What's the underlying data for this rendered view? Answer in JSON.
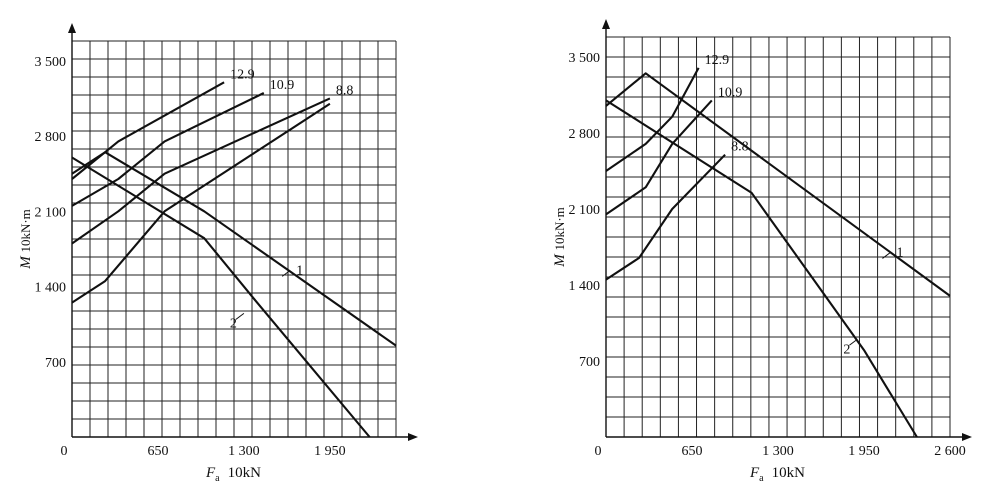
{
  "chart_data": [
    {
      "type": "line",
      "xlabel_symbol": "F",
      "xlabel_sub": "a",
      "xlabel_unit": "10kN",
      "ylabel_symbol": "M",
      "ylabel_unit": "10kN·m",
      "xlim": [
        0,
        2450
      ],
      "ylim": [
        0,
        3500
      ],
      "x_ticks": [
        {
          "value": 0,
          "label": "0"
        },
        {
          "value": 650,
          "label": "650"
        },
        {
          "value": 1300,
          "label": "1 300"
        },
        {
          "value": 1950,
          "label": "1 950"
        }
      ],
      "y_ticks": [
        {
          "value": 700,
          "label": "700"
        },
        {
          "value": 1400,
          "label": "1 400"
        },
        {
          "value": 2100,
          "label": "2 100"
        },
        {
          "value": 2800,
          "label": "2 800"
        },
        {
          "value": 3500,
          "label": "3 500"
        }
      ],
      "series": [
        {
          "name": "12.9",
          "points": [
            [
              0,
              2400
            ],
            [
              250,
              2650
            ],
            [
              350,
              2750
            ],
            [
              1150,
              3300
            ]
          ]
        },
        {
          "name": "10.9",
          "points": [
            [
              0,
              2150
            ],
            [
              350,
              2400
            ],
            [
              700,
              2750
            ],
            [
              1450,
              3200
            ]
          ]
        },
        {
          "name": "8.8",
          "points": [
            [
              0,
              1800
            ],
            [
              350,
              2100
            ],
            [
              700,
              2450
            ],
            [
              1950,
              3150
            ]
          ]
        },
        {
          "name": "",
          "points": [
            [
              0,
              1250
            ],
            [
              250,
              1450
            ],
            [
              700,
              2100
            ],
            [
              1950,
              3100
            ]
          ]
        },
        {
          "name": "1",
          "points": [
            [
              0,
              2450
            ],
            [
              250,
              2650
            ],
            [
              1000,
              2100
            ],
            [
              2450,
              850
            ]
          ]
        },
        {
          "name": "2",
          "points": [
            [
              0,
              2600
            ],
            [
              1000,
              1850
            ],
            [
              1400,
              1250
            ],
            [
              2250,
              0
            ]
          ]
        }
      ],
      "annotations": [
        {
          "text": "12.9",
          "x": 1150,
          "y": 3300
        },
        {
          "text": "10.9",
          "x": 1450,
          "y": 3200
        },
        {
          "text": "8.8",
          "x": 1950,
          "y": 3150
        },
        {
          "text": "1",
          "x": 1650,
          "y": 1550
        },
        {
          "text": "2",
          "x": 1300,
          "y": 1150
        }
      ]
    },
    {
      "type": "line",
      "xlabel_symbol": "F",
      "xlabel_sub": "a",
      "xlabel_unit": "10kN",
      "ylabel_symbol": "M",
      "ylabel_unit": "10kN·m",
      "xlim": [
        0,
        2600
      ],
      "ylim": [
        0,
        3500
      ],
      "x_ticks": [
        {
          "value": 0,
          "label": "0"
        },
        {
          "value": 650,
          "label": "650"
        },
        {
          "value": 1300,
          "label": "1 300"
        },
        {
          "value": 1950,
          "label": "1 950"
        },
        {
          "value": 2600,
          "label": "2 600"
        }
      ],
      "y_ticks": [
        {
          "value": 700,
          "label": "700"
        },
        {
          "value": 1400,
          "label": "1 400"
        },
        {
          "value": 2100,
          "label": "2 100"
        },
        {
          "value": 2800,
          "label": "2 800"
        },
        {
          "value": 3500,
          "label": "3 500"
        }
      ],
      "series": [
        {
          "name": "12.9",
          "points": [
            [
              0,
              2450
            ],
            [
              300,
              2700
            ],
            [
              500,
              2950
            ],
            [
              700,
              3400
            ]
          ]
        },
        {
          "name": "10.9",
          "points": [
            [
              0,
              2050
            ],
            [
              300,
              2300
            ],
            [
              500,
              2700
            ],
            [
              800,
              3100
            ]
          ]
        },
        {
          "name": "8.8",
          "points": [
            [
              0,
              1450
            ],
            [
              250,
              1650
            ],
            [
              500,
              2100
            ],
            [
              900,
              2600
            ]
          ]
        },
        {
          "name": "1",
          "points": [
            [
              0,
              3050
            ],
            [
              300,
              3350
            ],
            [
              2600,
              1300
            ]
          ]
        },
        {
          "name": "2",
          "points": [
            [
              0,
              3100
            ],
            [
              1100,
              2250
            ],
            [
              1950,
              800
            ],
            [
              2350,
              0
            ]
          ]
        }
      ],
      "annotations": [
        {
          "text": "12.9",
          "x": 700,
          "y": 3400
        },
        {
          "text": "10.9",
          "x": 800,
          "y": 3100
        },
        {
          "text": "8.8",
          "x": 900,
          "y": 2600
        },
        {
          "text": "1",
          "x": 2150,
          "y": 1700
        },
        {
          "text": "2",
          "x": 1900,
          "y": 900
        }
      ]
    }
  ]
}
